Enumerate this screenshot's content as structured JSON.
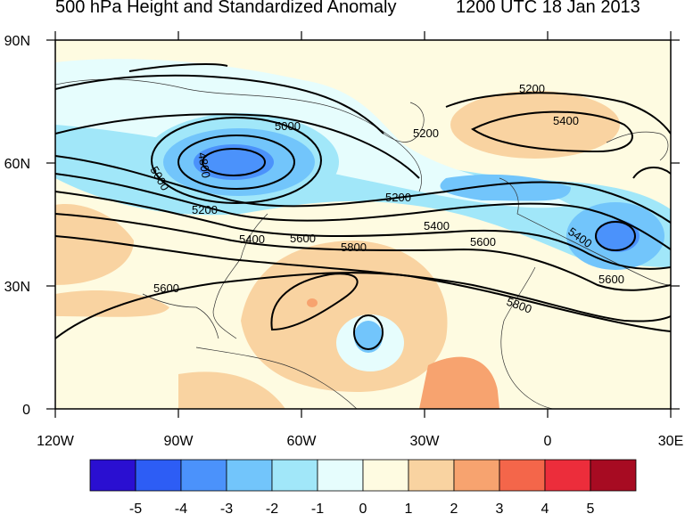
{
  "title": {
    "left": "500 hPa Height and Standardized Anomaly",
    "right": "1200 UTC 18 Jan 2013"
  },
  "axes": {
    "lat_labels": [
      "90N",
      "60N",
      "30N",
      "0"
    ],
    "lon_labels": [
      "120W",
      "90W",
      "60W",
      "30W",
      "0",
      "30E"
    ]
  },
  "contour_labels": [
    "5000",
    "5000",
    "5200",
    "5200",
    "5200",
    "5200",
    "5400",
    "5400",
    "5400",
    "5400",
    "5600",
    "5600",
    "5600",
    "5600",
    "5800",
    "5800",
    "4800"
  ],
  "colorbar": {
    "labels": [
      "-5",
      "-4",
      "-3",
      "-2",
      "-1",
      "0",
      "1",
      "2",
      "3",
      "4",
      "5"
    ],
    "colors": [
      "#2a0fd1",
      "#2d5df5",
      "#4b92fb",
      "#72c5fb",
      "#a1e7f9",
      "#e6fdfd",
      "#fefbe1",
      "#f9d3a1",
      "#f7a36f",
      "#f4664a",
      "#ec2d3b",
      "#a70b22"
    ]
  },
  "colors": {
    "land_bg": "#fefbe1",
    "anom_warm1": "#f9d3a1",
    "anom_warm2": "#f7a36f",
    "anom_cold1": "#a1e7f9",
    "anom_cold2": "#72c5fb",
    "anom_cold3": "#4b92fb"
  }
}
